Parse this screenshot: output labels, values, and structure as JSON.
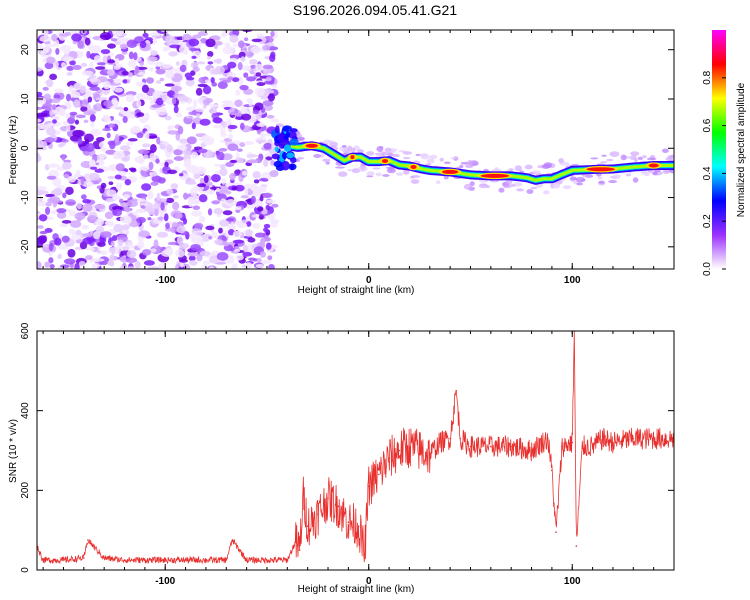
{
  "title": "S196.2026.094.05.41.G21",
  "chart_data": [
    {
      "type": "heatmap",
      "title": "S196.2026.094.05.41.G21",
      "xlabel": "Height of straight line (km)",
      "ylabel": "Frequency (Hz)",
      "xlim": [
        -163,
        150
      ],
      "ylim": [
        -24.5,
        24
      ],
      "xticks": [
        -100,
        0,
        100
      ],
      "xtick_labels": [
        "-100",
        "0",
        "100"
      ],
      "yticks": [
        20,
        10,
        0,
        -10,
        -20
      ],
      "ytick_labels": [
        "20",
        "10",
        "0",
        "-10",
        "-20"
      ],
      "noise_region_x": [
        -163,
        -46
      ],
      "ridge": {
        "x": [
          -46,
          -40,
          -35,
          -28,
          -22,
          -16,
          -12,
          -8,
          -4,
          0,
          5,
          10,
          15,
          20,
          25,
          30,
          40,
          50,
          60,
          70,
          78,
          82,
          86,
          90,
          95,
          100,
          110,
          120,
          130,
          140,
          150
        ],
        "freq": [
          3,
          0.5,
          0.2,
          0.5,
          0,
          -1.5,
          -2.5,
          -1.8,
          -1.8,
          -2.7,
          -2.7,
          -2.5,
          -3.4,
          -3.6,
          -4.1,
          -4.5,
          -4.8,
          -5.4,
          -5.6,
          -5.6,
          -6.0,
          -6.5,
          -6.2,
          -6.2,
          -5.3,
          -4.5,
          -4.3,
          -4.2,
          -3.8,
          -3.5,
          -3.5
        ]
      },
      "colorbar": {
        "label": "Normalized spectral amplitude",
        "range": [
          0,
          1
        ],
        "ticks": [
          0.0,
          0.2,
          0.4,
          0.6,
          0.8
        ],
        "tick_labels": [
          "0.0",
          "0.2",
          "0.4",
          "0.6",
          "0.8"
        ],
        "colors": [
          "#ffffff",
          "#9b30ff",
          "#0000ff",
          "#00ffff",
          "#00ff00",
          "#ffff00",
          "#ff0000",
          "#ff00ff"
        ]
      }
    },
    {
      "type": "line",
      "xlabel": "Height of straight line (km)",
      "ylabel": "SNR (10 * v/v)",
      "xlim": [
        -163,
        150
      ],
      "ylim": [
        0,
        600
      ],
      "xticks": [
        -100,
        0,
        100
      ],
      "xtick_labels": [
        "-100",
        "0",
        "100"
      ],
      "yticks": [
        0,
        200,
        400,
        600
      ],
      "ytick_labels": [
        "0",
        "200",
        "400",
        "600"
      ],
      "series": [
        {
          "name": "SNR",
          "color": "#e8312f",
          "x": [
            -163,
            -160,
            -150,
            -140,
            -138,
            -130,
            -120,
            -110,
            -100,
            -90,
            -80,
            -70,
            -67,
            -60,
            -50,
            -40,
            -36,
            -34,
            -32,
            -30,
            -25,
            -20,
            -15,
            -10,
            -5,
            -2,
            0,
            5,
            10,
            15,
            20,
            25,
            30,
            35,
            40,
            43,
            45,
            50,
            60,
            70,
            80,
            88,
            90,
            92,
            95,
            100,
            101,
            102,
            105,
            110,
            115,
            120,
            130,
            140,
            150
          ],
          "y": [
            60,
            25,
            25,
            30,
            75,
            30,
            25,
            25,
            25,
            25,
            25,
            25,
            75,
            25,
            25,
            25,
            70,
            50,
            190,
            110,
            140,
            180,
            160,
            120,
            110,
            40,
            210,
            240,
            280,
            300,
            310,
            300,
            290,
            320,
            330,
            450,
            330,
            310,
            310,
            310,
            300,
            330,
            250,
            95,
            310,
            320,
            600,
            60,
            310,
            310,
            330,
            320,
            330,
            330,
            330
          ]
        }
      ]
    }
  ]
}
